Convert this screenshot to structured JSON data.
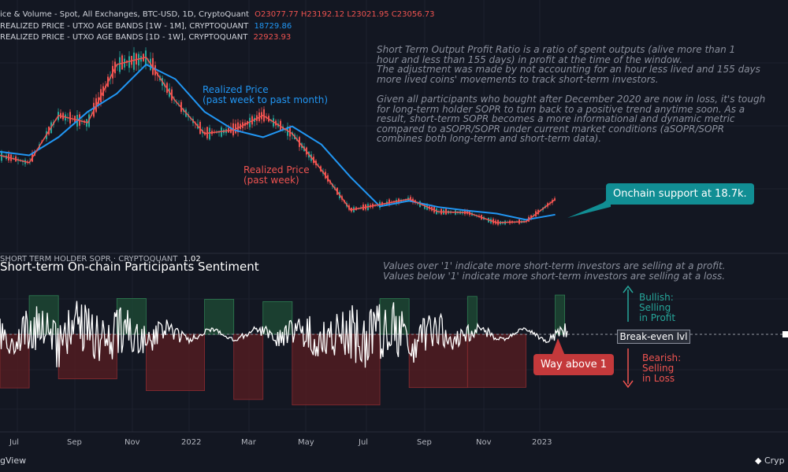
{
  "header": {
    "line1": {
      "text": "ice & Volume - Spot, All Exchanges, BTC-USD, 1D, CryptoQuant",
      "ohlc": "O23077.77  H23192.12  L23021.95  C23056.73",
      "color": "#ef5350"
    },
    "line2": {
      "text": "REALIZED PRICE - UTXO AGE BANDS [1W - 1M], CRYPTOQUANT",
      "value": "18729.86",
      "color": "#2196f3"
    },
    "line3": {
      "text": "REALIZED PRICE - UTXO AGE BANDS [1D - 1W], CRYPTOQUANT",
      "value": "22923.93",
      "color": "#ef5350"
    }
  },
  "lower_header": {
    "text": "SHORT TERM HOLDER SOPR · CRYPTOQUANT",
    "value": "1.02"
  },
  "section_title": "Short-term On-chain Participants Sentiment",
  "notes": {
    "top": "Short Term Output Profit Ratio is a ratio of spent outputs (alive more than 1\nhour and less than 155 days) in profit at the time of the window.\nThe adjustment was made by not accounting for an hour less lived and 155 days\nmore lived coins' movements to track short-term investors.\n\nGiven all participants who bought after December 2020 are now in loss, it's tough\nfor long-term holder SOPR to turn back to a positive trend anytime soon. As a\nresult, short-term SOPR becomes a more informational and dynamic metric\ncompared to aSOPR/SOPR under current market conditions (aSOPR/SOPR\ncombines both long-term and short-term data).",
    "lower": "Values over '1' indicate more short-term investors are selling at a profit.\nValues below '1' indicate more short-term investors are selling at a loss."
  },
  "annotations": {
    "realized_blue": "Realized Price\n(past week to past month)",
    "realized_red": "Realized Price\n(past week)",
    "onchain_support": "Onchain support at 18.7k.",
    "way_above": "Way above 1",
    "bullish": "Bullish:\nSelling\nin Profit",
    "bearish": "Bearish:\nSelling\nin Loss",
    "break_even": "Break-even lvl"
  },
  "footer": {
    "left": "gView",
    "right": "Cryp"
  },
  "colors": {
    "background": "#131722",
    "price_candle_up": "#26a69a",
    "price_candle_down": "#ef5350",
    "realized_1w_1m": "#2196f3",
    "realized_1d_1w": "#ef5350",
    "sopr_line": "#ffffff",
    "profit_box": "#1f4d35",
    "loss_box": "#5a1e22",
    "teal_callout": "#118e94",
    "red_callout": "#c4393b",
    "bullish_text": "#26a69a",
    "bearish_text": "#ef5350"
  },
  "chart_data": [
    {
      "type": "line",
      "title": "",
      "x_axis": {
        "ticks": [
          "Jul",
          "Sep",
          "Nov",
          "2022",
          "Mar",
          "May",
          "Jul",
          "Sep",
          "Nov",
          "2023"
        ]
      },
      "series": [
        {
          "name": "REALIZED PRICE - UTXO AGE BANDS [1W - 1M], CRYPTOQUANT",
          "color": "#2196f3",
          "x": [
            "2021-06",
            "2021-07",
            "2021-08",
            "2021-09",
            "2021-10",
            "2021-11",
            "2021-12",
            "2022-01",
            "2022-02",
            "2022-03",
            "2022-04",
            "2022-05",
            "2022-06",
            "2022-07",
            "2022-08",
            "2022-09",
            "2022-10",
            "2022-11",
            "2022-12",
            "2023-01"
          ],
          "values": [
            36000,
            35000,
            40000,
            47000,
            52000,
            60000,
            56000,
            47000,
            42000,
            40000,
            43000,
            38000,
            29000,
            21000,
            22500,
            20800,
            19800,
            19000,
            17300,
            18730
          ]
        },
        {
          "name": "REALIZED PRICE - UTXO AGE BANDS [1D - 1W], CRYPTOQUANT",
          "color": "#ef5350",
          "x": [
            "2021-06",
            "2021-07",
            "2021-08",
            "2021-09",
            "2021-10",
            "2021-11",
            "2021-12",
            "2022-01",
            "2022-02",
            "2022-03",
            "2022-04",
            "2022-05",
            "2022-06",
            "2022-07",
            "2022-08",
            "2022-09",
            "2022-10",
            "2022-11",
            "2022-12",
            "2023-01"
          ],
          "values": [
            35000,
            33000,
            46000,
            44000,
            60000,
            62000,
            50000,
            41000,
            42000,
            46000,
            41000,
            31000,
            20000,
            21500,
            23000,
            19500,
            19300,
            16500,
            16800,
            22924
          ]
        }
      ]
    },
    {
      "type": "line",
      "title": "Short-term On-chain Participants Sentiment",
      "y_reference": {
        "value": 1,
        "label": "Break-even lvl"
      },
      "series": [
        {
          "name": "SHORT TERM HOLDER SOPR · CRYPTOQUANT",
          "color": "#ffffff",
          "latest": 1.02
        }
      ],
      "regions": [
        {
          "sentiment": "loss",
          "start": "2021-06",
          "end": "2021-07"
        },
        {
          "sentiment": "profit",
          "start": "2021-07",
          "end": "2021-08"
        },
        {
          "sentiment": "loss",
          "start": "2021-08",
          "end": "2021-10"
        },
        {
          "sentiment": "profit",
          "start": "2021-10",
          "end": "2021-11"
        },
        {
          "sentiment": "loss",
          "start": "2021-11",
          "end": "2022-01"
        },
        {
          "sentiment": "profit",
          "start": "2022-01",
          "end": "2022-02"
        },
        {
          "sentiment": "loss",
          "start": "2022-02",
          "end": "2022-03"
        },
        {
          "sentiment": "profit",
          "start": "2022-03",
          "end": "2022-04"
        },
        {
          "sentiment": "loss",
          "start": "2022-04",
          "end": "2022-07"
        },
        {
          "sentiment": "profit",
          "start": "2022-07",
          "end": "2022-08"
        },
        {
          "sentiment": "loss",
          "start": "2022-08",
          "end": "2022-10"
        },
        {
          "sentiment": "profit",
          "start": "2022-10",
          "end": "2022-10"
        },
        {
          "sentiment": "loss",
          "start": "2022-10",
          "end": "2022-12"
        },
        {
          "sentiment": "profit",
          "start": "2023-01",
          "end": "2023-01"
        }
      ]
    }
  ]
}
